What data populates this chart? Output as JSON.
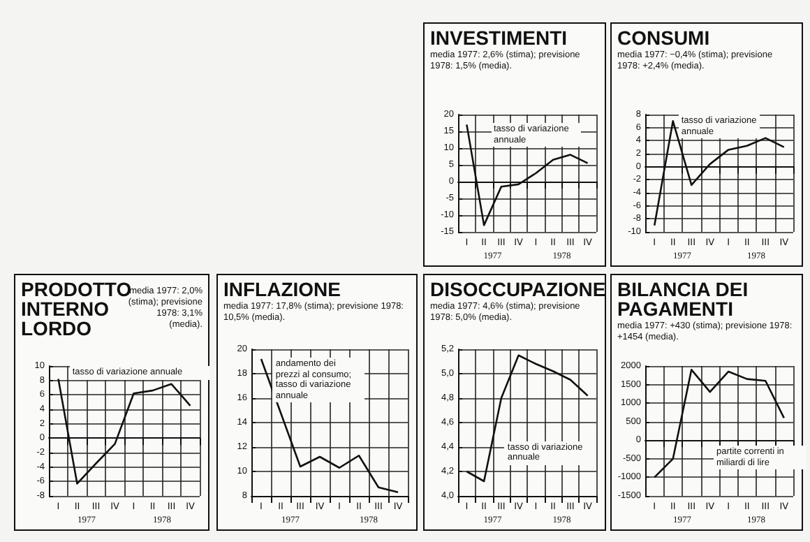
{
  "chart_data": [
    {
      "type": "line",
      "title": "INVESTIMENTI",
      "subtitle": "media 1977: 2,6% (stima); previsione 1978: 1,5% (media).",
      "annotations": [
        "tasso di variazione annuale",
        "1977",
        "1978"
      ],
      "categories": [
        "I",
        "II",
        "III",
        "IV",
        "I",
        "II",
        "III",
        "IV"
      ],
      "values": [
        17,
        -13,
        -1.5,
        -0.8,
        2.5,
        6.5,
        8,
        5.5
      ],
      "color": "#111111",
      "ylim": [
        -15,
        20
      ],
      "yticks": [
        -15,
        -10,
        -5,
        0,
        5,
        10,
        15,
        20
      ],
      "grid": true,
      "marker": "none"
    },
    {
      "type": "line",
      "title": "CONSUMI",
      "subtitle": "media 1977: −0,4% (stima); previsione 1978: +2,4% (media).",
      "annotations": [
        "tasso di variazione annuale",
        "1977",
        "1978"
      ],
      "categories": [
        "I",
        "II",
        "III",
        "IV",
        "I",
        "II",
        "III",
        "IV"
      ],
      "values": [
        -9,
        7,
        -2.8,
        0.4,
        2.6,
        3.2,
        4.4,
        3
      ],
      "color": "#111111",
      "ylim": [
        -10,
        8
      ],
      "yticks": [
        -10,
        -8,
        -6,
        -4,
        -2,
        0,
        2,
        4,
        6,
        8
      ],
      "grid": true,
      "marker": "none"
    },
    {
      "type": "line",
      "title": "PRODOTTO INTERNO LORDO",
      "subtitle": "media 1977: 2,0% (stima); previsione 1978: 3,1% (media).",
      "annotations": [
        "tasso di variazione annuale",
        "1977",
        "1978"
      ],
      "categories": [
        "I",
        "II",
        "III",
        "IV",
        "I",
        "II",
        "III",
        "IV"
      ],
      "values": [
        8.2,
        -6.3,
        -3.5,
        -0.8,
        6.2,
        6.6,
        7.5,
        4.5
      ],
      "color": "#111111",
      "ylim": [
        -8,
        10
      ],
      "yticks": [
        -8,
        -6,
        -4,
        -2,
        0,
        2,
        4,
        6,
        8,
        10
      ],
      "grid": true,
      "marker": "none"
    },
    {
      "type": "line",
      "title": "INFLAZIONE",
      "subtitle": "media 1977: 17,8% (stima); previsione 1978: 10,5% (media).",
      "annotations": [
        "andamento dei prezzi al consumo; tasso di variazione annuale",
        "1977",
        "1978"
      ],
      "categories": [
        "I",
        "II",
        "III",
        "IV",
        "I",
        "II",
        "III",
        "IV"
      ],
      "values": [
        19.2,
        14.8,
        10.4,
        11.2,
        10.3,
        11.3,
        8.7,
        8.3
      ],
      "color": "#111111",
      "ylim": [
        8,
        20
      ],
      "yticks": [
        8,
        10,
        12,
        14,
        16,
        18,
        20
      ],
      "grid": true,
      "marker": "none"
    },
    {
      "type": "line",
      "title": "DISOCCUPAZIONE",
      "subtitle": "media 1977: 4,6% (stima); previsione 1978: 5,0% (media).",
      "annotations": [
        "tasso di variazione annuale",
        "1977",
        "1978"
      ],
      "categories": [
        "I",
        "II",
        "III",
        "IV",
        "I",
        "II",
        "III",
        "IV"
      ],
      "values": [
        4.2,
        4.12,
        4.8,
        5.15,
        5.08,
        5.02,
        4.95,
        4.82
      ],
      "color": "#111111",
      "ylim": [
        4.0,
        5.2
      ],
      "yticks": [
        {
          "value": 4.0,
          "label": "4,0"
        },
        {
          "value": 4.2,
          "label": "4,2"
        },
        {
          "value": 4.4,
          "label": "4,4"
        },
        {
          "value": 4.6,
          "label": "4,6"
        },
        {
          "value": 4.8,
          "label": "4,8"
        },
        {
          "value": 5.0,
          "label": "5,0"
        },
        {
          "value": 5.2,
          "label": "5,2"
        }
      ],
      "grid": true,
      "marker": "none"
    },
    {
      "type": "line",
      "title": "BILANCIA DEI PAGAMENTI",
      "subtitle": "media 1977: +430 (stima); previsione 1978: +1454 (media).",
      "annotations": [
        "partite correnti in miliardi di lire",
        "1977",
        "1978"
      ],
      "categories": [
        "I",
        "II",
        "III",
        "IV",
        "I",
        "II",
        "III",
        "IV"
      ],
      "values": [
        -1000,
        -500,
        1900,
        1300,
        1850,
        1650,
        1600,
        600
      ],
      "color": "#111111",
      "ylim": [
        -1500,
        2000
      ],
      "yticks": [
        -1500,
        -1000,
        -500,
        0,
        500,
        1000,
        1500,
        2000
      ],
      "grid": true,
      "marker": "none"
    }
  ]
}
